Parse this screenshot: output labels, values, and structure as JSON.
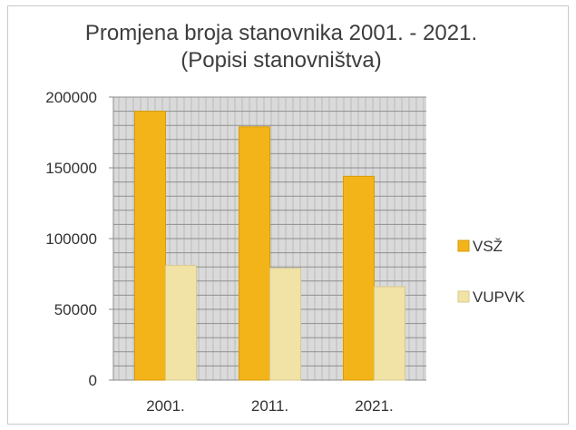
{
  "chart_data": {
    "type": "bar",
    "title": "Promjena broja stanovnika 2001. - 2021.",
    "subtitle": "(Popisi stanovništva)",
    "categories": [
      "2001.",
      "2011.",
      "2021."
    ],
    "series": [
      {
        "name": "VSŽ",
        "values": [
          190000,
          179000,
          144000
        ],
        "color": "#f2b418"
      },
      {
        "name": "VUPVK",
        "values": [
          81000,
          79000,
          66000
        ],
        "color": "#f1e2a6"
      }
    ],
    "ylim": [
      0,
      200000
    ],
    "yticks": [
      "200000",
      "150000",
      "100000",
      "50000",
      "0"
    ],
    "grid": true,
    "legend_position": "right"
  }
}
